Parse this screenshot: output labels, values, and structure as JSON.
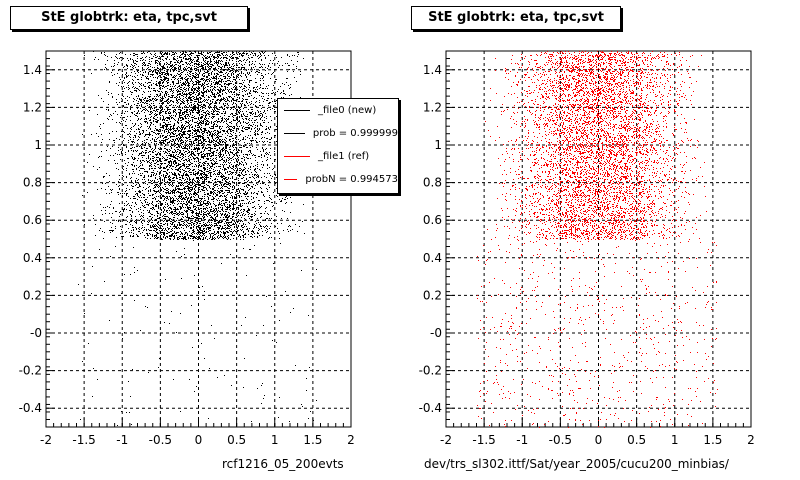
{
  "footer": {
    "left_caption": "rcf1216_05_200evts",
    "right_caption": "dev/trs_sl302.ittf/Sat/year_2005/cucu200_minbias/"
  },
  "chart_data": [
    {
      "type": "scatter",
      "title": "StE globtrk: eta, tpc,svt",
      "xlim": [
        -2,
        2
      ],
      "ylim": [
        -0.5,
        1.5
      ],
      "x_ticks": [
        "-2",
        "-1.5",
        "-1",
        "-0.5",
        "0",
        "0.5",
        "1",
        "1.5",
        "2"
      ],
      "y_ticks": [
        "-0.4",
        "-0.2",
        "-0",
        "0.2",
        "0.4",
        "0.6",
        "0.8",
        "1",
        "1.2",
        "1.4"
      ],
      "grid": true,
      "series": [
        {
          "name": "_file0 (new)",
          "color": "#000000",
          "dense_region": {
            "x": [
              -1.6,
              1.55
            ],
            "y": [
              0.5,
              1.5
            ]
          },
          "sparse_region": {
            "x": [
              -1.6,
              1.55
            ],
            "y": [
              -0.5,
              0.5
            ]
          }
        }
      ],
      "legend": {
        "placement": "top-right",
        "entries": [
          {
            "label": "_file0 (new)",
            "color": "#000000"
          },
          {
            "label": "prob = 0.999999",
            "color": "#000000"
          },
          {
            "label": "_file1 (ref)",
            "color": "#ff0000"
          },
          {
            "label": "probN = 0.994573",
            "color": "#ff0000"
          }
        ]
      }
    },
    {
      "type": "scatter",
      "title": "StE globtrk: eta, tpc,svt",
      "xlim": [
        -2,
        2
      ],
      "ylim": [
        -0.5,
        1.5
      ],
      "x_ticks": [
        "-2",
        "-1.5",
        "-1",
        "-0.5",
        "0",
        "0.5",
        "1",
        "1.5",
        "2"
      ],
      "y_ticks": [
        "-0.4",
        "-0.2",
        "-0",
        "0.2",
        "0.4",
        "0.6",
        "0.8",
        "1",
        "1.2",
        "1.4"
      ],
      "grid": true,
      "series": [
        {
          "name": "_file1 (ref)",
          "color": "#ff0000",
          "dense_region": {
            "x": [
              -1.6,
              1.55
            ],
            "y": [
              0.5,
              1.5
            ]
          },
          "sparse_region": {
            "x": [
              -1.6,
              1.55
            ],
            "y": [
              -0.5,
              0.5
            ]
          }
        }
      ]
    }
  ]
}
